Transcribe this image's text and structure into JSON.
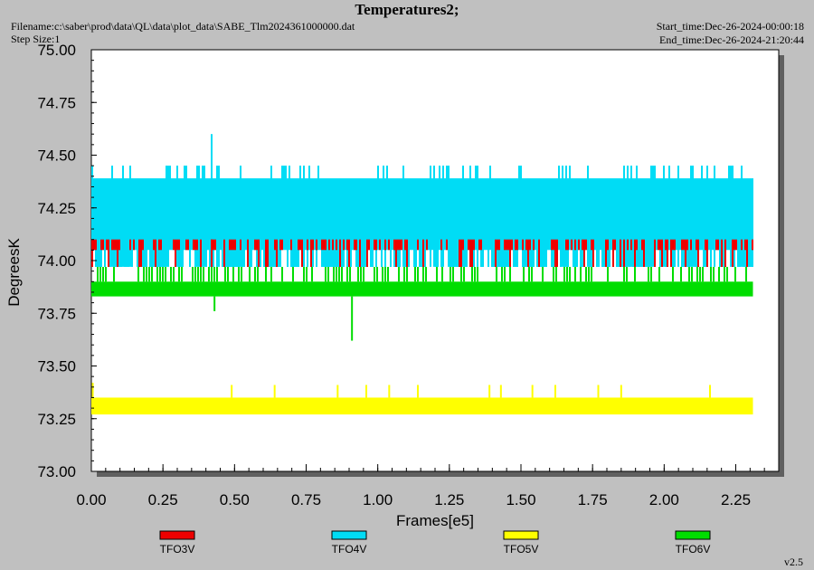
{
  "header": {
    "title": "Temperatures2;",
    "filename": "Filename:c:\\saber\\prod\\data\\QL\\data\\plot_data\\SABE_Tlm2024361000000.dat",
    "step_size": "Step Size:1",
    "start_time": "Start_time:Dec-26-2024-00:00:18",
    "end_time": "End_time:Dec-26-2024-21:20:44"
  },
  "version": "v2.5",
  "colors": {
    "TFO3V": "#ee0000",
    "TFO4V": "#00dcf5",
    "TFO5V": "#ffff00",
    "TFO6V": "#00dd00"
  },
  "chart_data": {
    "type": "line",
    "title": "Temperatures2;",
    "xlabel": "Frames[e5]",
    "ylabel": "DegreesK",
    "xlim": [
      0,
      2.4
    ],
    "ylim": [
      73.0,
      75.0
    ],
    "x_ticks": [
      "0.00",
      "0.25",
      "0.50",
      "0.75",
      "1.00",
      "1.25",
      "1.50",
      "1.75",
      "2.00",
      "2.25"
    ],
    "y_ticks": [
      "73.00",
      "73.25",
      "73.50",
      "73.75",
      "74.00",
      "74.25",
      "74.50",
      "74.75",
      "75.00"
    ],
    "grid": false,
    "legend": "bottom",
    "series": [
      {
        "name": "TFO3V",
        "x_range": [
          0,
          2.31
        ],
        "band": [
          73.97,
          74.1
        ],
        "spikes": [
          {
            "x": 0.42,
            "y": 74.1
          }
        ]
      },
      {
        "name": "TFO4V",
        "x_range": [
          0,
          2.31
        ],
        "band": [
          73.97,
          74.39
        ],
        "spikes": [
          {
            "x": 0.42,
            "y": 74.6
          }
        ]
      },
      {
        "name": "TFO5V",
        "x_range": [
          0,
          2.31
        ],
        "band": [
          73.27,
          73.35
        ],
        "spikes": [
          {
            "x": 0.005,
            "y": 73.42
          },
          {
            "x": 0.49,
            "y": 73.41
          },
          {
            "x": 0.64,
            "y": 73.41
          },
          {
            "x": 0.86,
            "y": 73.41
          },
          {
            "x": 0.96,
            "y": 73.41
          },
          {
            "x": 1.04,
            "y": 73.41
          },
          {
            "x": 1.14,
            "y": 73.41
          },
          {
            "x": 1.39,
            "y": 73.41
          },
          {
            "x": 1.43,
            "y": 73.41
          },
          {
            "x": 1.54,
            "y": 73.41
          },
          {
            "x": 1.62,
            "y": 73.41
          },
          {
            "x": 1.77,
            "y": 73.41
          },
          {
            "x": 1.85,
            "y": 73.41
          },
          {
            "x": 2.16,
            "y": 73.41
          }
        ]
      },
      {
        "name": "TFO6V",
        "x_range": [
          0,
          2.31
        ],
        "band": [
          73.83,
          73.9
        ],
        "spikes": [
          {
            "x": 0.43,
            "y": 73.76
          },
          {
            "x": 0.91,
            "y": 73.62
          }
        ]
      }
    ]
  }
}
